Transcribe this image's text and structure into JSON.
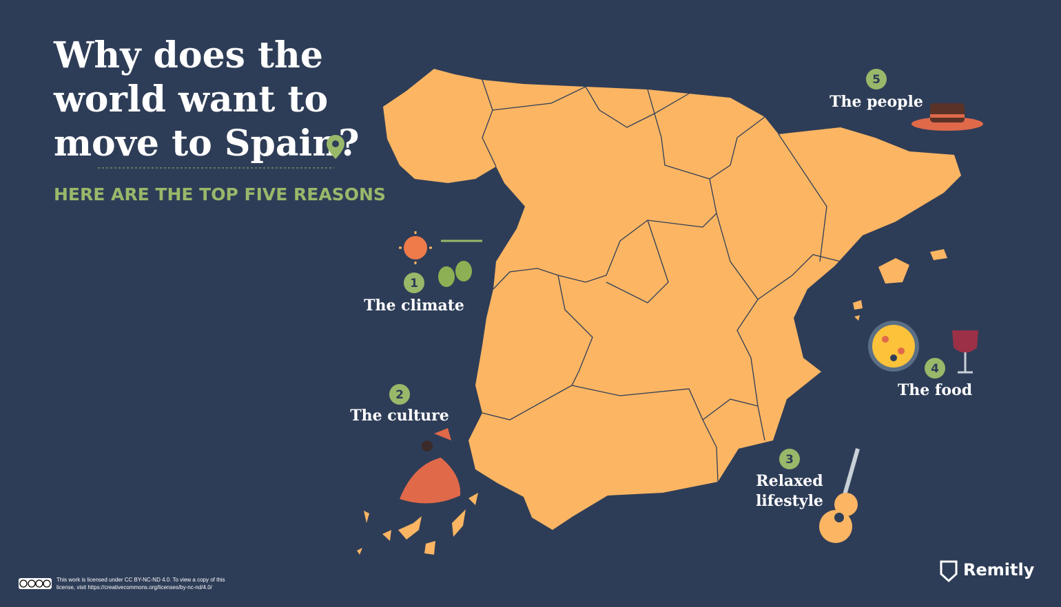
{
  "header": {
    "title_lines": [
      "Why does the",
      "world want to",
      "move to Spain?"
    ],
    "subtitle": "HERE ARE THE TOP FIVE REASONS"
  },
  "reasons": [
    {
      "number": "1",
      "label_lines": [
        "The climate"
      ]
    },
    {
      "number": "2",
      "label_lines": [
        "The culture"
      ]
    },
    {
      "number": "3",
      "label_lines": [
        "Relaxed",
        "lifestyle"
      ]
    },
    {
      "number": "4",
      "label_lines": [
        "The food"
      ]
    },
    {
      "number": "5",
      "label_lines": [
        "The people"
      ]
    }
  ],
  "footer": {
    "license_lines": [
      "This work is licensed under CC BY-NC-ND 4.0. To view a copy of this",
      "license, visit https://creativecommons.org/licenses/by-nc-nd/4.0/"
    ],
    "brand": "Remitly"
  }
}
